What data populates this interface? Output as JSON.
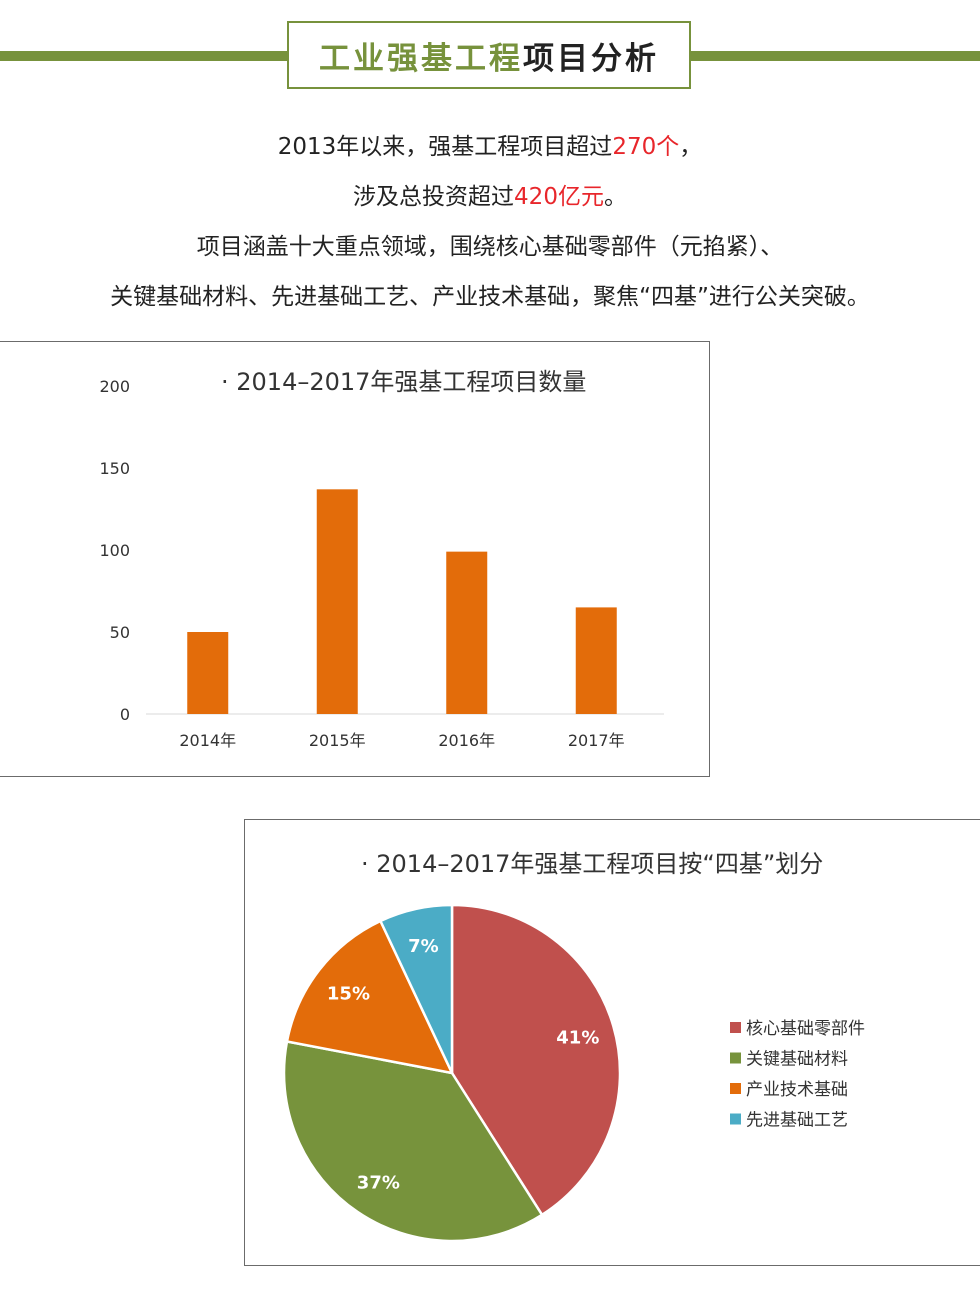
{
  "header": {
    "title_green": "工业强基工程",
    "title_dark": "项目分析",
    "accent_color": "#77923c"
  },
  "intro": {
    "line1_a": "2013年以来，强基工程项目超过",
    "line1_red": "270个",
    "line1_b": "，",
    "line2_a": "涉及总投资超过",
    "line2_red": "420亿元",
    "line2_b": "。",
    "line3": "项目涵盖十大重点领域，围绕核心基础零部件（元掐紧）、",
    "line4": "关键基础材料、先进基础工艺、产业技术基础，聚焦“四基”进行公关突破。"
  },
  "chart_data": [
    {
      "type": "bar",
      "title": "· 2014–2017年强基工程项目数量",
      "categories": [
        "2014年",
        "2015年",
        "2016年",
        "2017年"
      ],
      "values": [
        50,
        137,
        99,
        65
      ],
      "ylim": [
        0,
        200
      ],
      "yticks": [
        0,
        50,
        100,
        150,
        200
      ],
      "grid": false,
      "color": "#e36c0a"
    },
    {
      "type": "pie",
      "title": "· 2014–2017年强基工程项目按“四基”划分",
      "labels": [
        "核心基础零部件",
        "关键基础材料",
        "产业技术基础",
        "先进基础工艺"
      ],
      "values": [
        41,
        37,
        15,
        7
      ],
      "value_labels": [
        "41%",
        "37%",
        "15%",
        "7%"
      ],
      "colors": [
        "#c0504d",
        "#77933c",
        "#e36c0a",
        "#4bacc6"
      ],
      "legend": "right"
    }
  ]
}
